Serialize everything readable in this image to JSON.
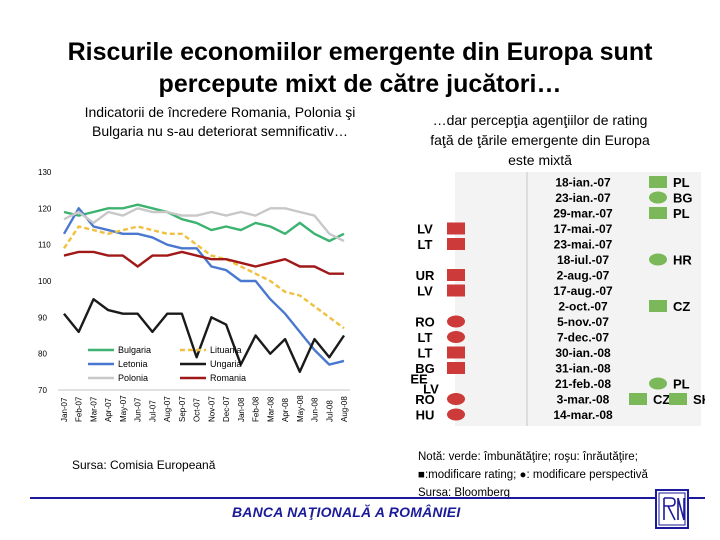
{
  "slide": {
    "title_line1": "Riscurile economiilor emergente din Europa sunt",
    "title_line2": "percepute mixt de către jucători…",
    "left_subtitle_line1": "Indicatorii de încredere Romania, Polonia şi",
    "left_subtitle_line2": "Bulgaria nu s-au deteriorat semnificativ…",
    "right_subtitle_line1": "…dar percepţia agenţiilor de rating",
    "right_subtitle_line2": "faţă de ţările emergente din Europa",
    "right_subtitle_line3": "este mixtă",
    "source_left": "Sursa: Comisia Europeană",
    "note_line1": "Notă: verde: îmbunătăţire; roşu: înrăutăţire;",
    "note_line2": "■:modificare rating; ●: modificare perspectivă",
    "note_line3": "Sursa: Bloomberg",
    "footer": "BANCA NAŢIONALĂ A ROMÂNIEI"
  },
  "colors": {
    "bulgaria": "#3cb371",
    "letonia": "#4a78d0",
    "polonia": "#c8c8c8",
    "lituania": "#f0c040",
    "ungaria": "#1a1a1a",
    "romania": "#a01818",
    "green_marker": "#7ab85a",
    "red_marker": "#cc3a3a",
    "footer_blue": "#1a1a9a"
  },
  "chart_data": {
    "type": "line",
    "x": [
      "Jan-07",
      "Feb-07",
      "Mar-07",
      "Apr-07",
      "May-07",
      "Jun-07",
      "Jul-07",
      "Aug-07",
      "Sep-07",
      "Oct-07",
      "Nov-07",
      "Dec-07",
      "Jan-08",
      "Feb-08",
      "Mar-08",
      "Apr-08",
      "May-08",
      "Jun-08",
      "Jul-08",
      "Aug-08"
    ],
    "ylim": [
      70,
      130
    ],
    "yticks": [
      70,
      80,
      90,
      100,
      110,
      120,
      130
    ],
    "series": [
      {
        "name": "Bulgaria",
        "color_key": "bulgaria",
        "dash": "",
        "values": [
          119,
          118,
          119,
          120,
          120,
          121,
          120,
          119,
          117,
          116,
          114,
          115,
          114,
          116,
          115,
          113,
          116,
          113,
          111,
          113
        ]
      },
      {
        "name": "Letonia",
        "color_key": "letonia",
        "dash": "",
        "values": [
          113,
          120,
          115,
          114,
          113,
          113,
          112,
          110,
          109,
          109,
          104,
          103,
          100,
          100,
          95,
          91,
          86,
          81,
          77,
          78
        ]
      },
      {
        "name": "Polonia",
        "color_key": "polonia",
        "dash": "",
        "values": [
          117,
          119,
          116,
          119,
          118,
          120,
          119,
          119,
          118,
          118,
          119,
          118,
          119,
          118,
          120,
          120,
          119,
          118,
          113,
          111
        ]
      },
      {
        "name": "Lituania",
        "color_key": "lituania",
        "dash": "5,3",
        "values": [
          109,
          115,
          114,
          113,
          114,
          115,
          114,
          113,
          113,
          110,
          107,
          106,
          104,
          102,
          100,
          97,
          96,
          93,
          90,
          87
        ]
      },
      {
        "name": "Ungaria",
        "color_key": "ungaria",
        "dash": "",
        "values": [
          91,
          86,
          95,
          92,
          91,
          91,
          86,
          91,
          91,
          79,
          90,
          88,
          77,
          85,
          80,
          84,
          75,
          84,
          79,
          85
        ]
      },
      {
        "name": "Romania",
        "color_key": "romania",
        "dash": "",
        "values": [
          107,
          108,
          108,
          107,
          107,
          104,
          107,
          107,
          108,
          107,
          106,
          106,
          105,
          104,
          105,
          106,
          104,
          104,
          102,
          102
        ]
      }
    ],
    "legend": [
      {
        "name": "Bulgaria",
        "color_key": "bulgaria",
        "col": 0
      },
      {
        "name": "Lituania",
        "color_key": "lituania",
        "col": 1
      },
      {
        "name": "Letonia",
        "color_key": "letonia",
        "col": 0
      },
      {
        "name": "Ungaria",
        "color_key": "ungaria",
        "col": 1
      },
      {
        "name": "Polonia",
        "color_key": "polonia",
        "col": 0
      },
      {
        "name": "Romania",
        "color_key": "romania",
        "col": 1
      }
    ]
  },
  "ratings": [
    {
      "date": "18-ian.-07",
      "left": [],
      "right": [
        {
          "code": "PL",
          "shape": "square",
          "color": "green"
        }
      ]
    },
    {
      "date": "23-ian.-07",
      "left": [],
      "right": [
        {
          "code": "BG",
          "shape": "circle",
          "color": "green"
        }
      ]
    },
    {
      "date": "29-mar.-07",
      "left": [],
      "right": [
        {
          "code": "PL",
          "shape": "square",
          "color": "green"
        }
      ]
    },
    {
      "date": "17-mai.-07",
      "left": [
        {
          "code": "LV",
          "shape": "square",
          "color": "red"
        }
      ],
      "right": []
    },
    {
      "date": "23-mai.-07",
      "left": [
        {
          "code": "LT",
          "shape": "square",
          "color": "red"
        }
      ],
      "right": []
    },
    {
      "date": "18-iul.-07",
      "left": [],
      "right": [
        {
          "code": "HR",
          "shape": "circle",
          "color": "green"
        }
      ]
    },
    {
      "date": "2-aug.-07",
      "left": [
        {
          "code": "UR",
          "shape": "square",
          "color": "red"
        }
      ],
      "right": []
    },
    {
      "date": "17-aug.-07",
      "left": [
        {
          "code": "LV",
          "shape": "square",
          "color": "red"
        }
      ],
      "right": []
    },
    {
      "date": "2-oct.-07",
      "left": [],
      "right": [
        {
          "code": "CZ",
          "shape": "square",
          "color": "green"
        }
      ]
    },
    {
      "date": "5-nov.-07",
      "left": [
        {
          "code": "RO",
          "shape": "circle",
          "color": "red"
        }
      ],
      "right": []
    },
    {
      "date": "7-dec.-07",
      "left": [
        {
          "code": "LT",
          "shape": "circle",
          "color": "red"
        }
      ],
      "right": []
    },
    {
      "date": "30-ian.-08",
      "left": [
        {
          "code": "LT",
          "shape": "square",
          "color": "red"
        }
      ],
      "right": []
    },
    {
      "date": "31-ian.-08",
      "left": [
        {
          "code": "BG",
          "shape": "square",
          "color": "red"
        }
      ],
      "right": []
    },
    {
      "date": "21-feb.-08",
      "left": [
        {
          "code": "EE",
          "shape": "square",
          "color": "red"
        },
        {
          "code": "LV",
          "shape": "square",
          "color": "red"
        }
      ],
      "right": [
        {
          "code": "PL",
          "shape": "circle",
          "color": "green"
        }
      ]
    },
    {
      "date": "3-mar.-08",
      "left": [
        {
          "code": "RO",
          "shape": "circle",
          "color": "red"
        }
      ],
      "right": [
        {
          "code": "CZ",
          "shape": "square",
          "color": "green"
        },
        {
          "code": "SK",
          "shape": "square",
          "color": "green"
        }
      ]
    },
    {
      "date": "14-mar.-08",
      "left": [
        {
          "code": "HU",
          "shape": "circle",
          "color": "red"
        }
      ],
      "right": []
    }
  ]
}
